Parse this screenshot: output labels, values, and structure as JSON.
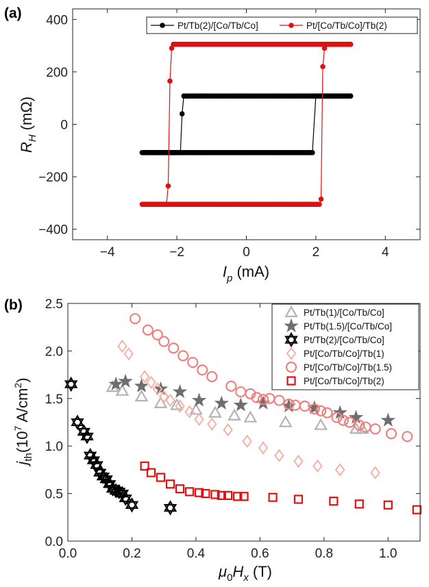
{
  "panel_labels": {
    "a": "(a)",
    "b": "(b)"
  },
  "axis_labels": {
    "a_y_main": "R",
    "a_y_sub": "H",
    "a_y_unit": " (mΩ)",
    "a_x_main": "I",
    "a_x_sub": "p",
    "a_x_unit": " (mA)",
    "b_y_main": "j",
    "b_y_sub": "th",
    "b_y_unit_pre": "(10",
    "b_y_unit_sup": "7",
    "b_y_unit_mid": " A/cm",
    "b_y_unit_sup2": "2",
    "b_y_unit_post": ")",
    "b_x_pre": "μ",
    "b_x_sub0": "0",
    "b_x_main": "H",
    "b_x_sub": "x",
    "b_x_unit": " (T)"
  },
  "chart_data": [
    {
      "type": "line",
      "xlabel": "I_p (mA)",
      "ylabel": "R_H (mΩ)",
      "xlim": [
        -5,
        5
      ],
      "ylim": [
        -440,
        440
      ],
      "xticks": [
        -4,
        -2,
        0,
        2,
        4
      ],
      "xtick_labels": [
        "−4",
        "−2",
        "0",
        "2",
        "4"
      ],
      "yticks": [
        -400,
        -200,
        0,
        200,
        400
      ],
      "ytick_labels": [
        "−400",
        "−200",
        "0",
        "200",
        "400"
      ],
      "grid": false,
      "legend_position": "top",
      "series": [
        {
          "name": "Pt/Tb(2)/[Co/Tb/Co]",
          "color": "#000000",
          "marker": "circle",
          "x": [
            -3.0,
            -2.0,
            -1.9,
            -1.85,
            -1.8,
            0.0,
            3.0,
            3.0,
            2.0,
            1.9,
            1.85,
            0.0,
            -3.0
          ],
          "y": [
            -108,
            -108,
            -108,
            40,
            108,
            108,
            108,
            108,
            108,
            -108,
            -108,
            -108,
            -108
          ]
        },
        {
          "name": "Pt/[Co/Tb/Co]/Tb(2)",
          "color": "#e01010",
          "marker": "circle",
          "x": [
            -3.0,
            -2.3,
            -2.25,
            -2.2,
            -2.15,
            -2.1,
            0.0,
            3.0,
            3.0,
            2.3,
            2.25,
            2.2,
            2.15,
            2.1,
            0.0,
            -3.0
          ],
          "y": [
            -305,
            -305,
            -235,
            165,
            290,
            305,
            305,
            305,
            305,
            305,
            290,
            220,
            -285,
            -305,
            -305,
            -305
          ]
        }
      ]
    },
    {
      "type": "scatter",
      "xlabel": "μ0Hx (T)",
      "ylabel": "jth (10^7 A/cm^2)",
      "xlim": [
        0,
        1.1
      ],
      "ylim": [
        0,
        2.5
      ],
      "xticks": [
        0,
        0.2,
        0.4,
        0.6,
        0.8,
        1.0
      ],
      "xtick_labels": [
        "0.0",
        "0.2",
        "0.4",
        "0.6",
        "0.8",
        "1.0"
      ],
      "yticks": [
        0,
        0.5,
        1.0,
        1.5,
        2.0,
        2.5
      ],
      "ytick_labels": [
        "0.0",
        "0.5",
        "1.0",
        "1.5",
        "2.0",
        "2.5"
      ],
      "grid": false,
      "legend_position": "top-right",
      "series": [
        {
          "name": "Pt/Tb(1)/[Co/Tb/Co]",
          "color": "#b3b3b3",
          "marker": "triangle",
          "x": [
            0.14,
            0.17,
            0.23,
            0.29,
            0.34,
            0.4,
            0.46,
            0.52,
            0.57,
            0.68,
            0.79,
            0.9,
            0.92
          ],
          "y": [
            1.62,
            1.58,
            1.52,
            1.45,
            1.43,
            1.38,
            1.35,
            1.32,
            1.3,
            1.25,
            1.22,
            1.18,
            1.18
          ]
        },
        {
          "name": "Pt/Tb(1.5)/[Co/Tb/Co]",
          "color": "#6e6e6e",
          "marker": "star",
          "x": [
            0.15,
            0.18,
            0.23,
            0.29,
            0.35,
            0.41,
            0.48,
            0.54,
            0.61,
            0.69,
            0.77,
            0.85,
            0.9,
            1.0
          ],
          "y": [
            1.65,
            1.68,
            1.63,
            1.6,
            1.57,
            1.48,
            1.45,
            1.43,
            1.45,
            1.42,
            1.4,
            1.35,
            1.3,
            1.27
          ]
        },
        {
          "name": "Pt/Tb(2)/[Co/Tb/Co]",
          "color": "#000000",
          "marker": "hexagram",
          "x": [
            0.01,
            0.03,
            0.05,
            0.06,
            0.07,
            0.08,
            0.09,
            0.1,
            0.11,
            0.12,
            0.13,
            0.14,
            0.15,
            0.16,
            0.17,
            0.18,
            0.2,
            0.32
          ],
          "y": [
            1.65,
            1.25,
            1.15,
            1.1,
            0.9,
            0.85,
            0.8,
            0.72,
            0.68,
            0.65,
            0.6,
            0.55,
            0.53,
            0.52,
            0.5,
            0.45,
            0.38,
            0.35
          ]
        },
        {
          "name": "Pt/[Co/Tb/Co]/Tb(1)",
          "color": "#f4b2a6",
          "marker": "diamond",
          "x": [
            0.17,
            0.19,
            0.24,
            0.26,
            0.28,
            0.3,
            0.32,
            0.35,
            0.38,
            0.41,
            0.45,
            0.5,
            0.56,
            0.61,
            0.66,
            0.72,
            0.78,
            0.85,
            0.96
          ],
          "y": [
            2.05,
            1.97,
            1.73,
            1.67,
            1.6,
            1.52,
            1.48,
            1.42,
            1.36,
            1.28,
            1.23,
            1.17,
            1.05,
            0.98,
            0.9,
            0.84,
            0.79,
            0.75,
            0.72
          ]
        },
        {
          "name": "Pt/[Co/Tb/Co]/Tb(1.5)",
          "color": "#f08080",
          "marker": "circle",
          "x": [
            0.21,
            0.25,
            0.28,
            0.3,
            0.33,
            0.36,
            0.39,
            0.42,
            0.45,
            0.51,
            0.54,
            0.57,
            0.59,
            0.61,
            0.63,
            0.66,
            0.69,
            0.71,
            0.74,
            0.77,
            0.79,
            0.81,
            0.84,
            0.86,
            0.88,
            0.91,
            0.93,
            0.96,
            1.01,
            1.06
          ],
          "y": [
            2.34,
            2.22,
            2.17,
            2.1,
            2.03,
            1.95,
            1.88,
            1.8,
            1.73,
            1.63,
            1.57,
            1.55,
            1.51,
            1.49,
            1.5,
            1.48,
            1.44,
            1.43,
            1.42,
            1.39,
            1.37,
            1.35,
            1.3,
            1.27,
            1.25,
            1.22,
            1.2,
            1.18,
            1.13,
            1.1
          ]
        },
        {
          "name": "Pt/[Co/Tb/Co]/Tb(2)",
          "color": "#e01010",
          "marker": "square",
          "x": [
            0.24,
            0.26,
            0.29,
            0.32,
            0.35,
            0.38,
            0.41,
            0.43,
            0.46,
            0.48,
            0.5,
            0.53,
            0.55,
            0.64,
            0.72,
            0.83,
            0.91,
            1.0,
            1.09
          ],
          "y": [
            0.79,
            0.72,
            0.67,
            0.6,
            0.55,
            0.52,
            0.51,
            0.5,
            0.49,
            0.48,
            0.48,
            0.47,
            0.47,
            0.46,
            0.44,
            0.42,
            0.39,
            0.38,
            0.33
          ]
        }
      ]
    }
  ]
}
